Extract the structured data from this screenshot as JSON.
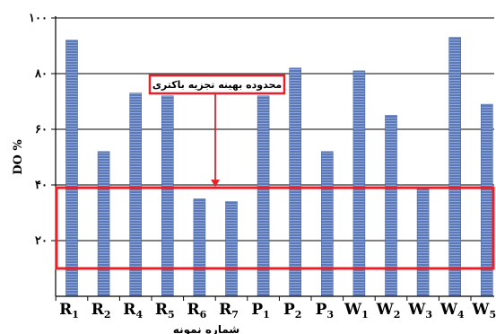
{
  "chart_data": {
    "type": "bar",
    "title": "",
    "ylabel": "DO %",
    "xlabel": "شماره نمونه",
    "ylim": [
      0,
      100
    ],
    "yticks": [
      {
        "value": 20,
        "label": "۲۰"
      },
      {
        "value": 40,
        "label": "۴۰"
      },
      {
        "value": 60,
        "label": "۶۰"
      },
      {
        "value": 80,
        "label": "۸۰"
      },
      {
        "value": 100,
        "label": "۱۰۰"
      }
    ],
    "categories": [
      {
        "base": "R",
        "sub": "1"
      },
      {
        "base": "R",
        "sub": "2"
      },
      {
        "base": "R",
        "sub": "4"
      },
      {
        "base": "R",
        "sub": "5"
      },
      {
        "base": "R",
        "sub": "6"
      },
      {
        "base": "R",
        "sub": "7"
      },
      {
        "base": "P",
        "sub": "1"
      },
      {
        "base": "P",
        "sub": "2"
      },
      {
        "base": "P",
        "sub": "3"
      },
      {
        "base": "W",
        "sub": "1"
      },
      {
        "base": "W",
        "sub": "2"
      },
      {
        "base": "W",
        "sub": "3"
      },
      {
        "base": "W",
        "sub": "4"
      },
      {
        "base": "W",
        "sub": "5"
      }
    ],
    "values": [
      92,
      52,
      73,
      72,
      35,
      34,
      72,
      82,
      52,
      81,
      65,
      39,
      93,
      69
    ],
    "grid": true,
    "bar_color": "#5b79b8",
    "optimal_range": {
      "ymin": 10,
      "ymax": 39,
      "label": "محدوده بهینه تجزیه باکتری",
      "color": "#e8202a"
    }
  }
}
